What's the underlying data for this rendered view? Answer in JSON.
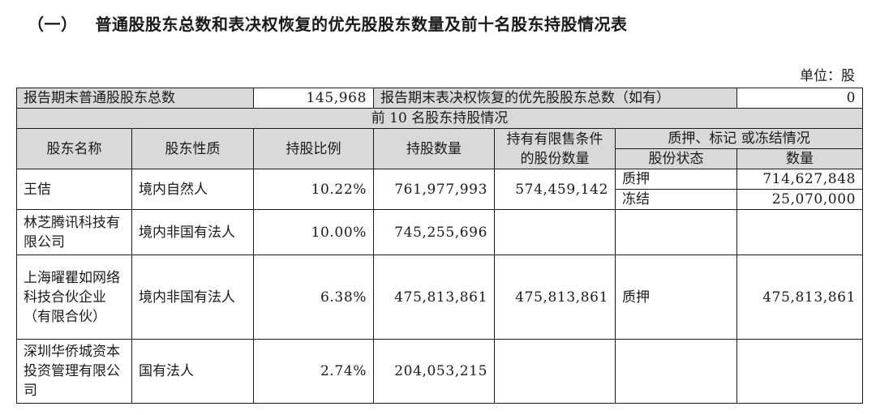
{
  "heading": {
    "section_no": "（一）",
    "title": "普通股股东总数和表决权恢复的优先股股东数量及前十名股东持股情况表"
  },
  "unit_label": "单位：股",
  "summary": {
    "common_label": "报告期末普通股股东总数",
    "common_value": "145,968",
    "preferred_label": "报告期末表决权恢复的优先股股东总数（如有）",
    "preferred_value": "0"
  },
  "section_header": "前 10 名股东持股情况",
  "columns": {
    "name": "股东名称",
    "nature": "股东性质",
    "ratio": "持股比例",
    "quantity": "持股数量",
    "restricted": "持有有限售条件的股份数量",
    "pledge_group": "质押、标记 或冻结情况",
    "share_status": "股份状态",
    "share_count": "数量"
  },
  "rows": [
    {
      "name": "王佶",
      "nature": "境内自然人",
      "ratio": "10.22%",
      "quantity": "761,977,993",
      "restricted": "574,459,142",
      "pledges": [
        {
          "status": "质押",
          "count": "714,627,848"
        },
        {
          "status": "冻结",
          "count": "25,070,000"
        }
      ]
    },
    {
      "name": "林芝腾讯科技有限公司",
      "nature": "境内非国有法人",
      "ratio": "10.00%",
      "quantity": "745,255,696",
      "restricted": "",
      "pledge_status": "",
      "pledge_count": ""
    },
    {
      "name": "上海曜瞿如网络科技合伙企业（有限合伙）",
      "nature": "境内非国有法人",
      "ratio": "6.38%",
      "quantity": "475,813,861",
      "restricted": "475,813,861",
      "pledge_status": "质押",
      "pledge_count": "475,813,861"
    },
    {
      "name": "深圳华侨城资本投资管理有限公司",
      "nature": "国有法人",
      "ratio": "2.74%",
      "quantity": "204,053,215",
      "restricted": "",
      "pledge_status": "",
      "pledge_count": ""
    }
  ]
}
